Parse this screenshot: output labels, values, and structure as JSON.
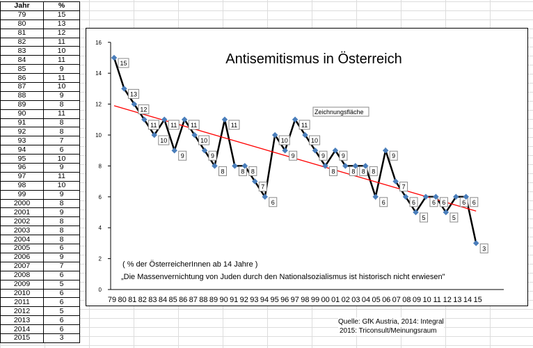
{
  "table": {
    "headers": [
      "Jahr",
      "%"
    ],
    "rows": [
      [
        "79",
        "15"
      ],
      [
        "80",
        "13"
      ],
      [
        "81",
        "12"
      ],
      [
        "82",
        "11"
      ],
      [
        "83",
        "10"
      ],
      [
        "84",
        "11"
      ],
      [
        "85",
        "9"
      ],
      [
        "86",
        "11"
      ],
      [
        "87",
        "10"
      ],
      [
        "88",
        "9"
      ],
      [
        "89",
        "8"
      ],
      [
        "90",
        "11"
      ],
      [
        "91",
        "8"
      ],
      [
        "92",
        "8"
      ],
      [
        "93",
        "7"
      ],
      [
        "94",
        "6"
      ],
      [
        "95",
        "10"
      ],
      [
        "96",
        "9"
      ],
      [
        "97",
        "11"
      ],
      [
        "98",
        "10"
      ],
      [
        "99",
        "9"
      ],
      [
        "2000",
        "8"
      ],
      [
        "2001",
        "9"
      ],
      [
        "2002",
        "8"
      ],
      [
        "2003",
        "8"
      ],
      [
        "2004",
        "8"
      ],
      [
        "2005",
        "6"
      ],
      [
        "2006",
        "9"
      ],
      [
        "2007",
        "7"
      ],
      [
        "2008",
        "6"
      ],
      [
        "2009",
        "5"
      ],
      [
        "2010",
        "6"
      ],
      [
        "2011",
        "6"
      ],
      [
        "2012",
        "5"
      ],
      [
        "2013",
        "6"
      ],
      [
        "2014",
        "6"
      ],
      [
        "2015",
        "3"
      ]
    ]
  },
  "chart_data": {
    "type": "line",
    "title": "Antisemitismus in Österreich",
    "categories": [
      "79",
      "80",
      "81",
      "82",
      "83",
      "84",
      "85",
      "86",
      "87",
      "88",
      "89",
      "90",
      "91",
      "92",
      "93",
      "94",
      "95",
      "96",
      "97",
      "98",
      "99",
      "00",
      "01",
      "02",
      "03",
      "04",
      "05",
      "06",
      "07",
      "08",
      "09",
      "10",
      "11",
      "12",
      "13",
      "14",
      "15"
    ],
    "series": [
      {
        "name": "%",
        "values": [
          15,
          13,
          12,
          11,
          10,
          11,
          9,
          11,
          10,
          9,
          8,
          11,
          8,
          8,
          7,
          6,
          10,
          9,
          11,
          10,
          9,
          8,
          9,
          8,
          8,
          8,
          6,
          9,
          7,
          6,
          5,
          6,
          6,
          5,
          6,
          6,
          3
        ],
        "color": "#000000"
      }
    ],
    "trendline": {
      "type": "linear",
      "color": "#ff0000"
    },
    "ylim": [
      0,
      16
    ],
    "yticks": [
      0,
      2,
      4,
      6,
      8,
      10,
      12,
      14,
      16
    ],
    "annotations": [
      "( % der ÖsterreicherInnen ab 14 Jahre )",
      "„Die Massenvernichtung von Juden durch den   Nationalsozialismus ist historisch nicht erwiesen\""
    ],
    "tooltip": "Zeichnungsfläche"
  },
  "source": {
    "line1": "Quelle:  GfK Austria, 2014: Integral",
    "line2": "2015: Triconsult/Meinungsraum"
  }
}
